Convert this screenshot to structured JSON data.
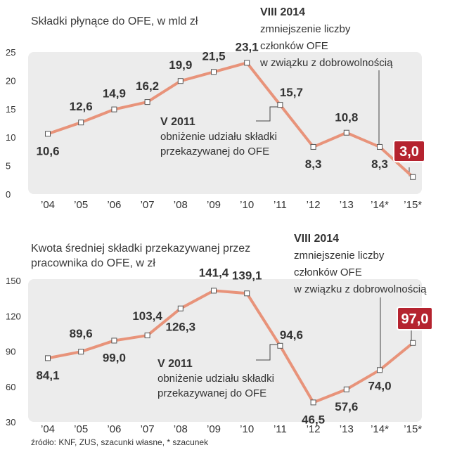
{
  "chart_data": [
    {
      "type": "line",
      "title": "Składki płynące do OFE, w mld zł",
      "categories": [
        "’04",
        "’05",
        "’06",
        "’07",
        "’08",
        "’09",
        "’10",
        "’11",
        "’12",
        "’13",
        "’14*",
        "’15*"
      ],
      "values": [
        10.6,
        12.6,
        14.9,
        16.2,
        19.9,
        21.5,
        23.1,
        15.7,
        8.3,
        10.8,
        8.3,
        3.0
      ],
      "labels": [
        "10,6",
        "12,6",
        "14,9",
        "16,2",
        "19,9",
        "21,5",
        "23,1",
        "15,7",
        "8,3",
        "10,8",
        "8,3",
        "3,0"
      ],
      "highlight_index": 11,
      "yticks": [
        "0",
        "5",
        "10",
        "15",
        "20",
        "25"
      ],
      "ylim": [
        0,
        25
      ],
      "annotations": [
        {
          "title": "V 2011",
          "lines": [
            "obniżenie udziału składki",
            "przekazywanej do OFE"
          ],
          "point_index": 7
        },
        {
          "title": "VIII 2014",
          "lines": [
            "zmniejszenie liczby",
            "członków OFE",
            "w związku z dobrowolnością"
          ],
          "point_index": 10
        }
      ]
    },
    {
      "type": "line",
      "title": "Kwota średniej składki przekazywanej przez pracownika do OFE, w zł",
      "categories": [
        "’04",
        "’05",
        "’06",
        "’07",
        "’08",
        "’09",
        "’10",
        "’11",
        "’12",
        "’13",
        "’14*",
        "’15*"
      ],
      "values": [
        84.1,
        89.6,
        99.0,
        103.4,
        126.3,
        141.4,
        139.1,
        94.6,
        46.5,
        57.6,
        74.0,
        97.0
      ],
      "labels": [
        "84,1",
        "89,6",
        "99,0",
        "103,4",
        "126,3",
        "141,4",
        "139,1",
        "94,6",
        "46,5",
        "57,6",
        "74,0",
        "97,0"
      ],
      "highlight_index": 11,
      "yticks": [
        "30",
        "60",
        "90",
        "120",
        "150"
      ],
      "ylim": [
        30,
        150
      ],
      "annotations": [
        {
          "title": "V 2011",
          "lines": [
            "obniżenie udziału składki",
            "przekazywanej do OFE"
          ],
          "point_index": 7
        },
        {
          "title": "VIII 2014",
          "lines": [
            "zmniejszenie liczby",
            "członków OFE",
            "w związku z dobrowolnością"
          ],
          "point_index": 10
        }
      ]
    }
  ],
  "source": "źródło: KNF, ZUS, szacunki własne, * szacunek",
  "colors": {
    "panel": "#ececec",
    "line": "#e8937a",
    "marker_fill": "#ffffff",
    "marker_stroke": "#555555",
    "highlight_bg": "#b5232f",
    "highlight_text": "#ffffff",
    "text": "#333333"
  }
}
